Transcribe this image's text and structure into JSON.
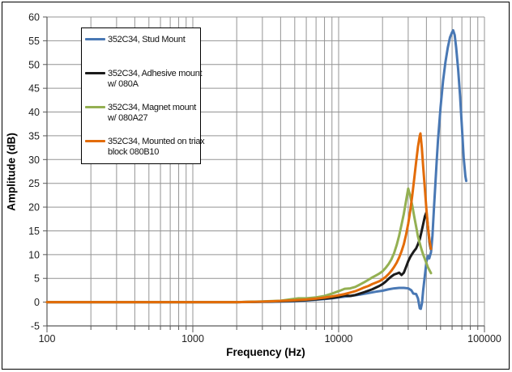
{
  "figure": {
    "background": "#FFFFFF",
    "border_color": "#000000"
  },
  "chart_data": {
    "type": "line",
    "title": "",
    "xlabel": "Frequency (Hz)",
    "ylabel": "Amplitude (dB)",
    "x_scale": "log",
    "x_range": [
      100,
      100000
    ],
    "x_major_tick_labels": [
      "100",
      "1000",
      "10000",
      "100000"
    ],
    "y_range": [
      -5,
      60
    ],
    "y_tick_step": 5,
    "grid": true,
    "gridline_color": "#949494",
    "axis_color": "#595959",
    "tick_label_color": "#1f1f1f",
    "legend_position": "top-left-inside",
    "series": [
      {
        "name": "352C34, Stud Mount",
        "legend_lines": [
          "352C34, Stud Mount"
        ],
        "color": "#4978B4",
        "points": [
          [
            100,
            0
          ],
          [
            150,
            0
          ],
          [
            200,
            0
          ],
          [
            300,
            0
          ],
          [
            500,
            0
          ],
          [
            700,
            0
          ],
          [
            1000,
            0
          ],
          [
            1500,
            0
          ],
          [
            2000,
            0
          ],
          [
            3000,
            0.05
          ],
          [
            4000,
            0.1
          ],
          [
            5000,
            0.2
          ],
          [
            6000,
            0.35
          ],
          [
            7000,
            0.5
          ],
          [
            8000,
            0.65
          ],
          [
            9000,
            0.8
          ],
          [
            10000,
            1
          ],
          [
            12000,
            1.3
          ],
          [
            14000,
            1.6
          ],
          [
            16000,
            1.9
          ],
          [
            18000,
            2.2
          ],
          [
            20000,
            2.4
          ],
          [
            22000,
            2.7
          ],
          [
            24000,
            2.9
          ],
          [
            26000,
            3
          ],
          [
            28000,
            3
          ],
          [
            30000,
            2.9
          ],
          [
            31500,
            2.5
          ],
          [
            32500,
            1.8
          ],
          [
            34000,
            1.7
          ],
          [
            35000,
            0.8
          ],
          [
            36000,
            -1.3
          ],
          [
            36600,
            -1.4
          ],
          [
            37300,
            -0.2
          ],
          [
            38000,
            2.5
          ],
          [
            39000,
            5.5
          ],
          [
            40000,
            8.5
          ],
          [
            41000,
            9.7
          ],
          [
            41800,
            9.2
          ],
          [
            43000,
            10.5
          ],
          [
            44000,
            14
          ],
          [
            45000,
            19.5
          ],
          [
            46000,
            24.5
          ],
          [
            47000,
            29.5
          ],
          [
            48000,
            34
          ],
          [
            50000,
            41
          ],
          [
            52000,
            46.5
          ],
          [
            54000,
            50.5
          ],
          [
            56000,
            53.5
          ],
          [
            58000,
            55.7
          ],
          [
            60000,
            56.8
          ],
          [
            61000,
            57.2
          ],
          [
            62500,
            56.2
          ],
          [
            64000,
            53.5
          ],
          [
            66000,
            49
          ],
          [
            68000,
            43.5
          ],
          [
            70000,
            37
          ],
          [
            72000,
            30.5
          ],
          [
            74000,
            26.5
          ],
          [
            75000,
            25.5
          ]
        ]
      },
      {
        "name": "352C34, Adhesive mount w/ 080A",
        "legend_lines": [
          "352C34, Adhesive mount",
          "w/ 080A"
        ],
        "color": "#1b1b1b",
        "points": [
          [
            100,
            0
          ],
          [
            200,
            0
          ],
          [
            300,
            0
          ],
          [
            500,
            0
          ],
          [
            700,
            0
          ],
          [
            1000,
            0
          ],
          [
            1500,
            0
          ],
          [
            2000,
            0
          ],
          [
            3000,
            0.1
          ],
          [
            4000,
            0.2
          ],
          [
            5000,
            0.3
          ],
          [
            6000,
            0.45
          ],
          [
            7000,
            0.6
          ],
          [
            8000,
            0.75
          ],
          [
            9000,
            0.9
          ],
          [
            10000,
            1.1
          ],
          [
            11000,
            1.4
          ],
          [
            12000,
            1.3
          ],
          [
            13000,
            1.5
          ],
          [
            15000,
            2.1
          ],
          [
            17000,
            2.7
          ],
          [
            19000,
            3.4
          ],
          [
            20000,
            3.8
          ],
          [
            21000,
            4.3
          ],
          [
            22000,
            4.9
          ],
          [
            23000,
            5.4
          ],
          [
            24000,
            5.8
          ],
          [
            25000,
            6
          ],
          [
            26000,
            6.2
          ],
          [
            27000,
            5.7
          ],
          [
            28000,
            6.2
          ],
          [
            29000,
            7.4
          ],
          [
            30000,
            8.6
          ],
          [
            31000,
            9.5
          ],
          [
            32000,
            10.2
          ],
          [
            33000,
            10.8
          ],
          [
            34000,
            11.3
          ],
          [
            35000,
            12.2
          ],
          [
            36000,
            13.2
          ],
          [
            37000,
            14.8
          ],
          [
            38000,
            16.4
          ],
          [
            39000,
            18
          ],
          [
            40000,
            18.9
          ],
          [
            40600,
            17
          ],
          [
            41200,
            15
          ],
          [
            42000,
            12.6
          ],
          [
            42800,
            11.2
          ]
        ]
      },
      {
        "name": "352C34, Magnet mount w/ 080A27",
        "legend_lines": [
          "352C34, Magnet mount",
          "w/ 080A27"
        ],
        "color": "#94B052",
        "points": [
          [
            100,
            0
          ],
          [
            200,
            0
          ],
          [
            300,
            0
          ],
          [
            500,
            0
          ],
          [
            700,
            0
          ],
          [
            1000,
            0
          ],
          [
            1500,
            0
          ],
          [
            2000,
            0
          ],
          [
            3000,
            0.15
          ],
          [
            4000,
            0.3
          ],
          [
            4700,
            0.6
          ],
          [
            5300,
            0.8
          ],
          [
            6000,
            0.8
          ],
          [
            7000,
            1
          ],
          [
            8000,
            1.3
          ],
          [
            9000,
            1.8
          ],
          [
            10000,
            2.3
          ],
          [
            11000,
            2.8
          ],
          [
            12000,
            2.9
          ],
          [
            13000,
            3.2
          ],
          [
            14000,
            3.7
          ],
          [
            15000,
            4.2
          ],
          [
            16000,
            4.7
          ],
          [
            17000,
            5.2
          ],
          [
            18000,
            5.6
          ],
          [
            19000,
            6
          ],
          [
            20000,
            6.5
          ],
          [
            21000,
            7.2
          ],
          [
            22000,
            8
          ],
          [
            23000,
            9
          ],
          [
            24000,
            10.3
          ],
          [
            25000,
            12
          ],
          [
            26000,
            14
          ],
          [
            27000,
            16.3
          ],
          [
            28000,
            18.6
          ],
          [
            29000,
            21.3
          ],
          [
            30000,
            23.9
          ],
          [
            31000,
            22.3
          ],
          [
            32000,
            20.3
          ],
          [
            33000,
            18
          ],
          [
            34000,
            15.9
          ],
          [
            35000,
            13.8
          ],
          [
            36000,
            12.4
          ],
          [
            37000,
            11.1
          ],
          [
            38000,
            10
          ],
          [
            39000,
            9.1
          ],
          [
            40000,
            8.2
          ],
          [
            41000,
            7.3
          ],
          [
            42000,
            6.7
          ],
          [
            43000,
            6.1
          ]
        ]
      },
      {
        "name": "352C34, Mounted on triax block 080B10",
        "legend_lines": [
          "352C34, Mounted on triax",
          "block 080B10"
        ],
        "color": "#E36C09",
        "points": [
          [
            100,
            0
          ],
          [
            200,
            0
          ],
          [
            300,
            0
          ],
          [
            500,
            0
          ],
          [
            700,
            0
          ],
          [
            1000,
            0
          ],
          [
            1500,
            0
          ],
          [
            2000,
            0
          ],
          [
            3000,
            0.1
          ],
          [
            4000,
            0.25
          ],
          [
            5000,
            0.4
          ],
          [
            6000,
            0.55
          ],
          [
            7000,
            0.75
          ],
          [
            8000,
            0.95
          ],
          [
            9000,
            1.2
          ],
          [
            10000,
            1.45
          ],
          [
            11000,
            1.7
          ],
          [
            12000,
            2
          ],
          [
            13000,
            2.3
          ],
          [
            14000,
            2.7
          ],
          [
            15000,
            3.1
          ],
          [
            16000,
            3.4
          ],
          [
            17000,
            3.8
          ],
          [
            18000,
            4.1
          ],
          [
            19000,
            4.4
          ],
          [
            20000,
            4.8
          ],
          [
            21000,
            5.3
          ],
          [
            22000,
            5.9
          ],
          [
            23000,
            6.6
          ],
          [
            24000,
            7.4
          ],
          [
            25000,
            8.3
          ],
          [
            26000,
            9.4
          ],
          [
            27000,
            10.7
          ],
          [
            28000,
            12.2
          ],
          [
            29000,
            14.2
          ],
          [
            30000,
            16.5
          ],
          [
            31000,
            19.3
          ],
          [
            32000,
            22.5
          ],
          [
            33000,
            26
          ],
          [
            34000,
            29.5
          ],
          [
            35000,
            32.7
          ],
          [
            36000,
            35
          ],
          [
            36400,
            35.5
          ],
          [
            37200,
            32.5
          ],
          [
            38000,
            28.5
          ],
          [
            39000,
            24
          ],
          [
            40000,
            19.5
          ],
          [
            41000,
            15.8
          ],
          [
            42000,
            13
          ],
          [
            43000,
            11.2
          ]
        ]
      }
    ]
  }
}
